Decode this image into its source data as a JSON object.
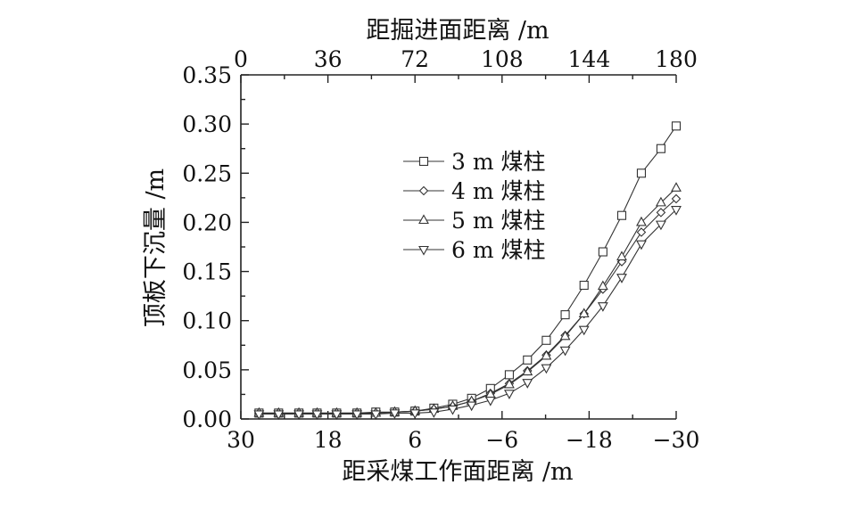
{
  "chart_data": {
    "type": "line",
    "xlabel": "距采煤工作面距离 /m",
    "x2label": "距掘进面距离 /m",
    "ylabel": "顶板下沉量 /m",
    "xlim": [
      30,
      -30
    ],
    "x2lim": [
      0,
      180
    ],
    "ylim": [
      0,
      0.35
    ],
    "x_ticks": [
      30,
      18,
      6,
      -6,
      -18,
      -30
    ],
    "x_tick_labels": [
      "30",
      "18",
      "6",
      "−6",
      "−18",
      "−30"
    ],
    "x2_ticks": [
      0,
      36,
      72,
      108,
      144,
      180
    ],
    "x2_tick_labels": [
      "0",
      "36",
      "72",
      "108",
      "144",
      "180"
    ],
    "y_ticks": [
      0,
      0.05,
      0.1,
      0.15,
      0.2,
      0.25,
      0.3,
      0.35
    ],
    "y_tick_labels": [
      "0.00",
      "0.05",
      "0.10",
      "0.15",
      "0.20",
      "0.25",
      "0.30",
      "0.35"
    ],
    "grid": false,
    "legend_position": "upper-center",
    "x": [
      27.5,
      24.8,
      22,
      19.5,
      16.8,
      14,
      11.4,
      8.8,
      6,
      3.4,
      0.8,
      -1.8,
      -4.4,
      -7,
      -9.5,
      -12.1,
      -14.7,
      -17.3,
      -19.9,
      -22.5,
      -25.2,
      -27.9,
      -30
    ],
    "series": [
      {
        "name": "3 m 煤柱",
        "marker": "square",
        "values": [
          0.006,
          0.006,
          0.006,
          0.006,
          0.006,
          0.006,
          0.007,
          0.007,
          0.008,
          0.011,
          0.015,
          0.021,
          0.031,
          0.045,
          0.06,
          0.08,
          0.106,
          0.136,
          0.17,
          0.207,
          0.25,
          0.275,
          0.298
        ]
      },
      {
        "name": "4 m 煤柱",
        "marker": "diamond",
        "values": [
          0.006,
          0.006,
          0.006,
          0.006,
          0.006,
          0.006,
          0.006,
          0.007,
          0.008,
          0.01,
          0.013,
          0.018,
          0.026,
          0.036,
          0.049,
          0.065,
          0.085,
          0.107,
          0.132,
          0.16,
          0.19,
          0.21,
          0.224
        ]
      },
      {
        "name": "5 m 煤柱",
        "marker": "triangle-up",
        "values": [
          0.006,
          0.006,
          0.006,
          0.006,
          0.006,
          0.006,
          0.006,
          0.007,
          0.008,
          0.01,
          0.013,
          0.018,
          0.025,
          0.035,
          0.048,
          0.064,
          0.084,
          0.107,
          0.135,
          0.165,
          0.2,
          0.22,
          0.235
        ]
      },
      {
        "name": "6 m 煤柱",
        "marker": "triangle-down",
        "values": [
          0.005,
          0.005,
          0.005,
          0.005,
          0.005,
          0.005,
          0.005,
          0.006,
          0.006,
          0.007,
          0.01,
          0.014,
          0.019,
          0.026,
          0.037,
          0.052,
          0.07,
          0.091,
          0.115,
          0.144,
          0.178,
          0.198,
          0.213
        ]
      }
    ]
  }
}
